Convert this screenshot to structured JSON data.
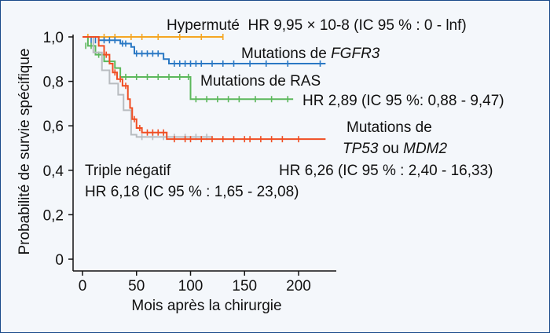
{
  "chart_data": {
    "type": "line",
    "xlabel": "Mois après la chirurgie",
    "ylabel": "Probabilité de survie spécifique",
    "xlim": [
      0,
      230
    ],
    "ylim": [
      0,
      1.0
    ],
    "x_ticks": [
      "0",
      "50",
      "100",
      "150",
      "200"
    ],
    "x_tick_values": [
      0,
      50,
      100,
      150,
      200
    ],
    "y_ticks": [
      "0",
      "0,2",
      "0,4",
      "0,6",
      "0,8",
      "1,0"
    ],
    "y_tick_values": [
      0,
      0.2,
      0.4,
      0.6,
      0.8,
      1.0
    ],
    "series": [
      {
        "key": "hypermute",
        "color": "#f5a623",
        "steps": [
          [
            0,
            1.0
          ],
          [
            130,
            1.0
          ]
        ],
        "censors": [
          [
            5,
            1.0
          ],
          [
            20,
            1.0
          ],
          [
            30,
            1.0
          ],
          [
            45,
            1.0
          ],
          [
            55,
            1.0
          ],
          [
            70,
            1.0
          ],
          [
            90,
            1.0
          ],
          [
            110,
            1.0
          ],
          [
            130,
            1.0
          ]
        ]
      },
      {
        "key": "fgfr3",
        "color": "#2a78c4",
        "steps": [
          [
            0,
            1.0
          ],
          [
            15,
            0.985
          ],
          [
            35,
            0.97
          ],
          [
            45,
            0.955
          ],
          [
            48,
            0.925
          ],
          [
            75,
            0.9
          ],
          [
            80,
            0.88
          ],
          [
            225,
            0.88
          ]
        ],
        "censors": [
          [
            8,
            0.985
          ],
          [
            12,
            0.985
          ],
          [
            20,
            0.985
          ],
          [
            25,
            0.985
          ],
          [
            30,
            0.985
          ],
          [
            37,
            0.97
          ],
          [
            40,
            0.97
          ],
          [
            50,
            0.925
          ],
          [
            55,
            0.925
          ],
          [
            60,
            0.925
          ],
          [
            65,
            0.925
          ],
          [
            70,
            0.925
          ],
          [
            85,
            0.88
          ],
          [
            90,
            0.88
          ],
          [
            95,
            0.88
          ],
          [
            100,
            0.88
          ],
          [
            105,
            0.88
          ],
          [
            110,
            0.88
          ],
          [
            120,
            0.88
          ],
          [
            130,
            0.88
          ],
          [
            140,
            0.88
          ],
          [
            155,
            0.88
          ],
          [
            170,
            0.88
          ],
          [
            190,
            0.88
          ],
          [
            220,
            0.88
          ]
        ]
      },
      {
        "key": "ras",
        "color": "#5cb85c",
        "steps": [
          [
            0,
            1.0
          ],
          [
            5,
            0.96
          ],
          [
            12,
            0.92
          ],
          [
            20,
            0.89
          ],
          [
            30,
            0.86
          ],
          [
            35,
            0.82
          ],
          [
            100,
            0.72
          ],
          [
            195,
            0.72
          ]
        ],
        "censors": [
          [
            3,
            0.96
          ],
          [
            8,
            0.96
          ],
          [
            15,
            0.92
          ],
          [
            25,
            0.89
          ],
          [
            40,
            0.82
          ],
          [
            50,
            0.82
          ],
          [
            60,
            0.82
          ],
          [
            70,
            0.82
          ],
          [
            80,
            0.82
          ],
          [
            90,
            0.82
          ],
          [
            98,
            0.82
          ],
          [
            105,
            0.72
          ],
          [
            115,
            0.72
          ],
          [
            125,
            0.72
          ],
          [
            135,
            0.72
          ],
          [
            145,
            0.72
          ],
          [
            160,
            0.72
          ],
          [
            175,
            0.72
          ],
          [
            190,
            0.72
          ]
        ]
      },
      {
        "key": "triple",
        "color": "#b8bcc0",
        "steps": [
          [
            0,
            1.0
          ],
          [
            10,
            0.93
          ],
          [
            18,
            0.85
          ],
          [
            25,
            0.79
          ],
          [
            33,
            0.74
          ],
          [
            38,
            0.67
          ],
          [
            45,
            0.56
          ],
          [
            50,
            0.55
          ],
          [
            120,
            0.55
          ]
        ],
        "censors": [
          [
            55,
            0.55
          ],
          [
            65,
            0.55
          ],
          [
            75,
            0.55
          ],
          [
            85,
            0.55
          ],
          [
            95,
            0.55
          ],
          [
            105,
            0.55
          ],
          [
            115,
            0.55
          ]
        ]
      },
      {
        "key": "tp53",
        "color": "#f04e23",
        "steps": [
          [
            0,
            1.0
          ],
          [
            15,
            0.96
          ],
          [
            20,
            0.92
          ],
          [
            25,
            0.88
          ],
          [
            28,
            0.84
          ],
          [
            32,
            0.81
          ],
          [
            37,
            0.78
          ],
          [
            42,
            0.72
          ],
          [
            44,
            0.68
          ],
          [
            46,
            0.63
          ],
          [
            50,
            0.59
          ],
          [
            55,
            0.57
          ],
          [
            78,
            0.54
          ],
          [
            225,
            0.54
          ]
        ],
        "censors": [
          [
            22,
            0.92
          ],
          [
            30,
            0.84
          ],
          [
            35,
            0.81
          ],
          [
            40,
            0.78
          ],
          [
            48,
            0.63
          ],
          [
            53,
            0.59
          ],
          [
            60,
            0.57
          ],
          [
            65,
            0.57
          ],
          [
            70,
            0.57
          ],
          [
            75,
            0.57
          ],
          [
            85,
            0.54
          ],
          [
            95,
            0.54
          ],
          [
            100,
            0.54
          ],
          [
            110,
            0.54
          ],
          [
            120,
            0.54
          ],
          [
            130,
            0.54
          ],
          [
            140,
            0.54
          ],
          [
            150,
            0.54
          ],
          [
            155,
            0.54
          ],
          [
            165,
            0.54
          ],
          [
            175,
            0.54
          ],
          [
            185,
            0.54
          ],
          [
            200,
            0.54
          ]
        ]
      }
    ],
    "annotations": {
      "hypermute": "Hypermuté  HR 9,95 × 10-8 (IC 95 % : 0 - lnf)",
      "fgfr3_prefix": "Mutations de ",
      "fgfr3_gene": "FGFR3",
      "ras": "Mutations de RAS",
      "ras_hr": "HR 2,89 (IC 95 %: 0,88 - 9,47)",
      "tp53_line1": "Mutations de",
      "tp53_gene1": "TP53",
      "tp53_or": " ou ",
      "tp53_gene2": "MDM2",
      "tp53_hr": "HR 6,26 (IC 95 % : 2,40 - 16,33)",
      "triple": "Triple négatif",
      "triple_hr": "HR 6,18 (IC 95 % : 1,65 - 23,08)"
    }
  }
}
